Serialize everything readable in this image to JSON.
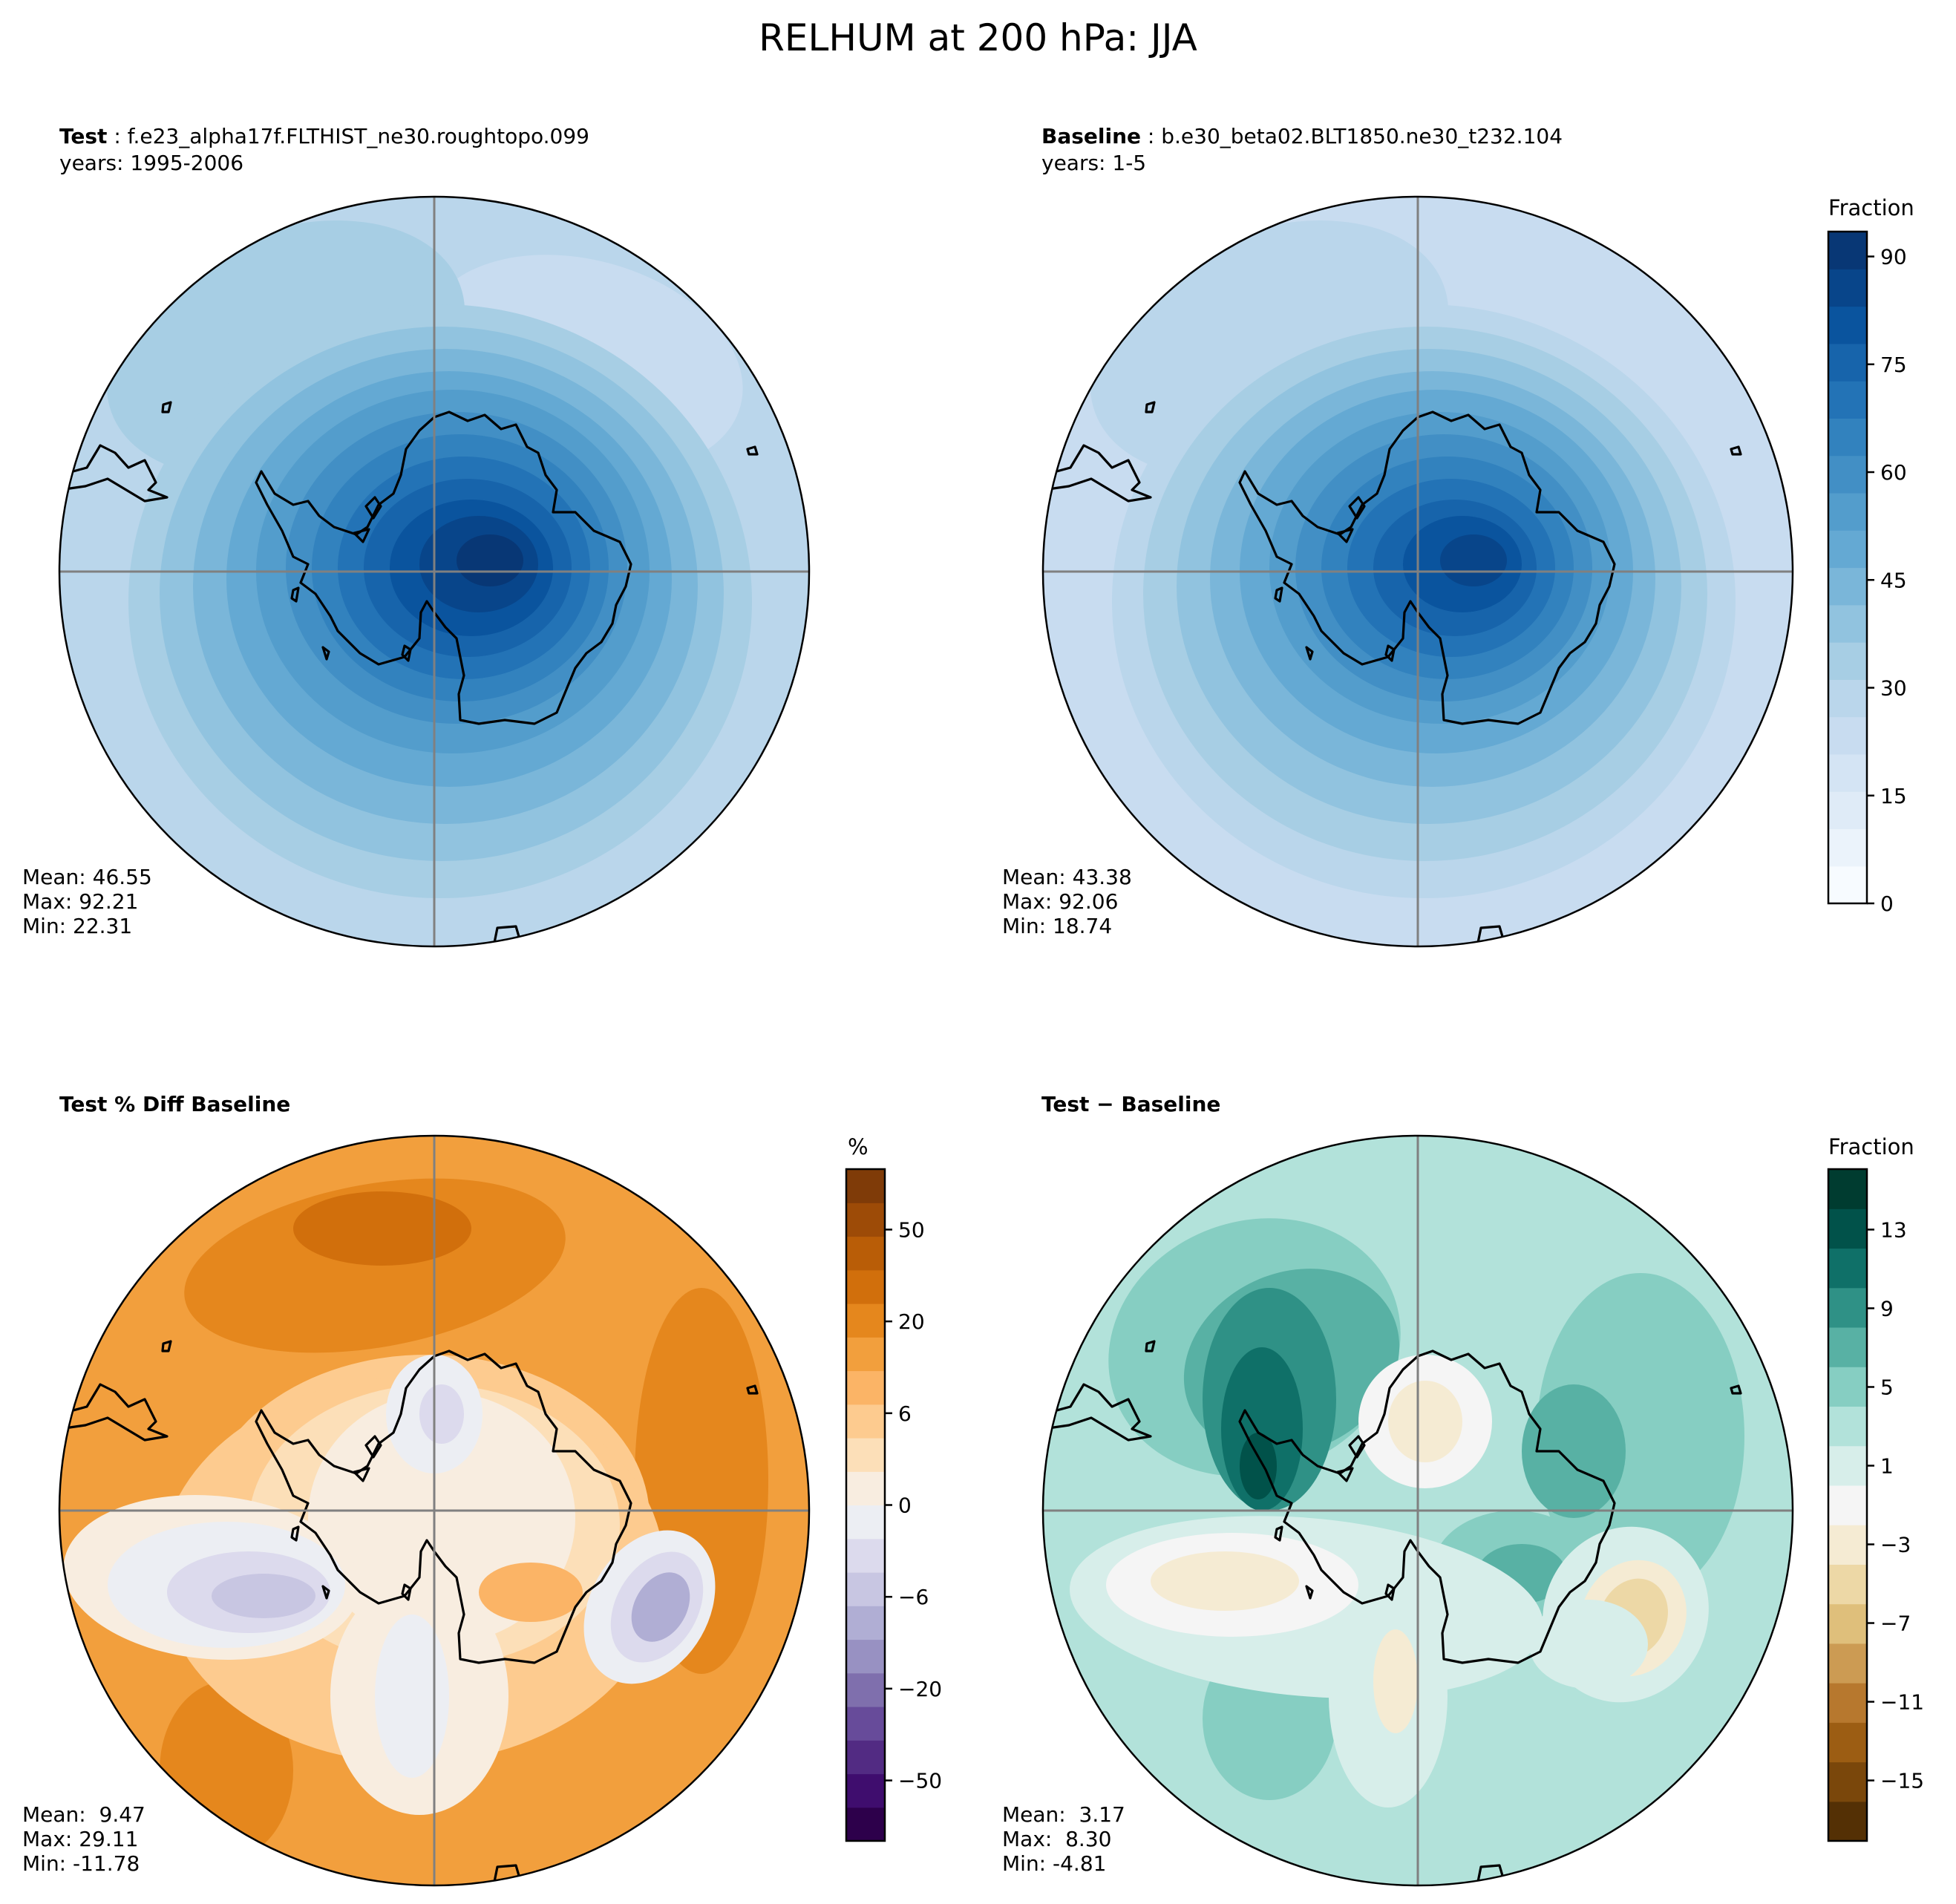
{
  "title": "RELHUM at 200 hPa: JJA",
  "panels": {
    "test": {
      "label": "Test",
      "case": "f.e23_alpha17f.FLTHIST_ne30.roughtopo.099",
      "years": "years: 1995-2006",
      "mean": "Mean: 46.55",
      "max": "Max: 92.21",
      "min": "Min: 22.31"
    },
    "baseline": {
      "label": "Baseline",
      "case": "b.e30_beta02.BLT1850.ne30_t232.104",
      "years": "years: 1-5",
      "mean": "Mean: 43.38",
      "max": "Max: 92.06",
      "min": "Min: 18.74"
    },
    "pctdiff": {
      "label": "Test % Diff Baseline",
      "mean": "Mean:  9.47",
      "max": "Max: 29.11",
      "min": "Min: -11.78"
    },
    "diff": {
      "label": "Test − Baseline",
      "mean": "Mean:  3.17",
      "max": "Max:  8.30",
      "min": "Min: -4.81"
    }
  },
  "colorbars": {
    "fields": {
      "label": "Fraction",
      "ticks": [
        "0",
        "15",
        "30",
        "45",
        "60",
        "75",
        "90"
      ],
      "colors": [
        "#f7fbff",
        "#ebf3fb",
        "#dfebf7",
        "#d4e4f4",
        "#c8dcf0",
        "#bad6eb",
        "#a7cee4",
        "#91c3df",
        "#7ab6d9",
        "#64a9d3",
        "#539dcc",
        "#428fc5",
        "#3282be",
        "#2373b6",
        "#1764ab",
        "#0a549e",
        "#08458a",
        "#083775"
      ]
    },
    "pctdiff": {
      "label": "%",
      "ticks": [
        "50",
        "20",
        "6",
        "0",
        "−6",
        "−20",
        "−50"
      ],
      "colors": [
        "#2d004b",
        "#3f0d6e",
        "#522b83",
        "#674b9a",
        "#7f6fad",
        "#9891c2",
        "#b0aed4",
        "#c8c6e2",
        "#dcdaed",
        "#eceef3",
        "#f8ede0",
        "#fcdfb8",
        "#fdcb8f",
        "#fbb466",
        "#f29f3d",
        "#e5871d",
        "#d16f0c",
        "#b95d07",
        "#9d4b07",
        "#7f3b08"
      ]
    },
    "diff": {
      "label": "Fraction",
      "ticks": [
        "13",
        "9",
        "5",
        "1",
        "−3",
        "−7",
        "−11",
        "−15"
      ],
      "colors": [
        "#543005",
        "#7a470b",
        "#9c5d13",
        "#b7782e",
        "#cc9b53",
        "#dfbf7b",
        "#edd8a6",
        "#f5ebd3",
        "#f5f5f5",
        "#d7eeea",
        "#b2e2da",
        "#86cec2",
        "#58b1a4",
        "#2f9186",
        "#0f7068",
        "#01524a",
        "#003c30"
      ]
    }
  }
}
